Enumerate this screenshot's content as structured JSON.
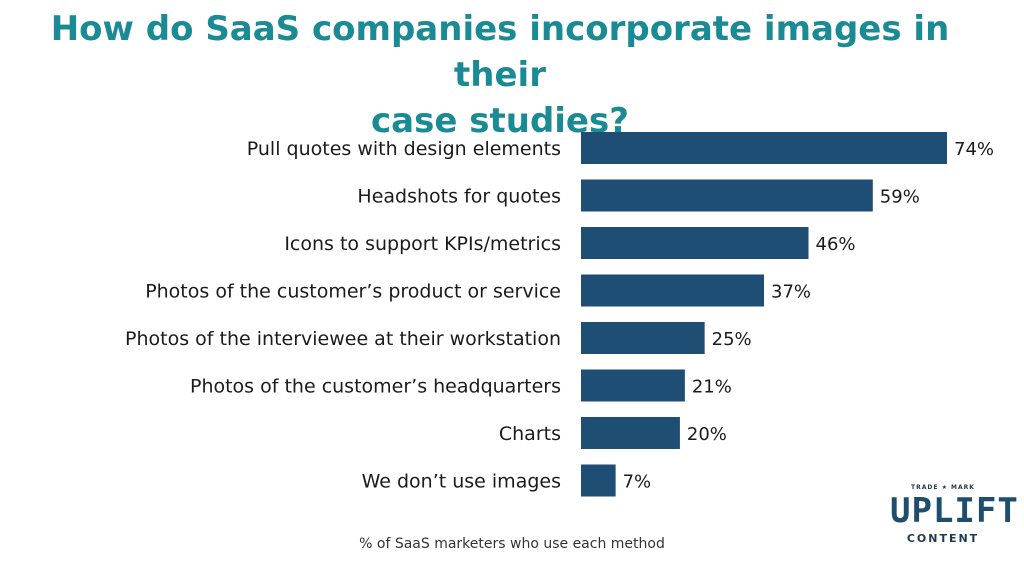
{
  "chart_data": {
    "type": "bar",
    "orientation": "horizontal",
    "title": "How do SaaS companies incorporate images in their\ncase studies?",
    "categories": [
      "Pull quotes with design elements",
      "Headshots for quotes",
      "Icons to support KPIs/metrics",
      "Photos of the customer’s product or service",
      "Photos of the interviewee at their workstation",
      "Photos of the customer’s headquarters",
      "Charts",
      "We don’t use images"
    ],
    "values": [
      74,
      59,
      46,
      37,
      25,
      21,
      20,
      7
    ],
    "value_labels": [
      "74%",
      "59%",
      "46%",
      "37%",
      "25%",
      "21%",
      "20%",
      "7%"
    ],
    "xlabel": "% of SaaS marketers who use each method",
    "ylabel": "",
    "xlim": [
      0,
      74
    ],
    "grid": false,
    "legend": "none",
    "bar_color": "#1f4e75"
  },
  "logo": {
    "trademark": "TRADE ★ MARK",
    "name": "UPLIFT",
    "subtitle": "CONTENT"
  },
  "colors": {
    "title": "#1a8a94",
    "bar": "#1f4e75",
    "text": "#1b1b1b"
  }
}
